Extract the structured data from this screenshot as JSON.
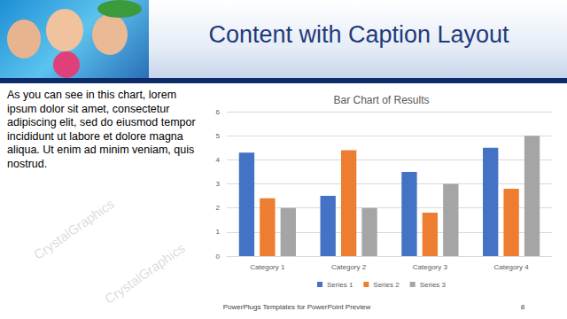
{
  "slide": {
    "title": "Content with Caption Layout",
    "caption": "As you can see in this chart, lorem ipsum dolor sit amet, consectetur adipiscing elit, sed do eiusmod tempor incididunt ut labore et dolore magna aliqua. Ut enim ad minim veniam, quis nostrud.",
    "footer": "PowerPlugs Templates for PowerPoint Preview",
    "page_number": 8,
    "watermark": "CrystalGraphics"
  },
  "chart_data": {
    "type": "bar",
    "title": "Bar Chart of Results",
    "categories": [
      "Category 1",
      "Category 2",
      "Category 3",
      "Category 4"
    ],
    "series": [
      {
        "name": "Series 1",
        "color": "#4472c4",
        "values": [
          4.3,
          2.5,
          3.5,
          4.5
        ]
      },
      {
        "name": "Series 2",
        "color": "#ed7d31",
        "values": [
          2.4,
          4.4,
          1.8,
          2.8
        ]
      },
      {
        "name": "Series 3",
        "color": "#a5a5a5",
        "values": [
          2,
          2,
          3,
          5
        ]
      }
    ],
    "ylim": [
      0,
      6
    ],
    "yticks": [
      0,
      1,
      2,
      3,
      4,
      5,
      6
    ],
    "grid": true,
    "legend": "bottom"
  }
}
